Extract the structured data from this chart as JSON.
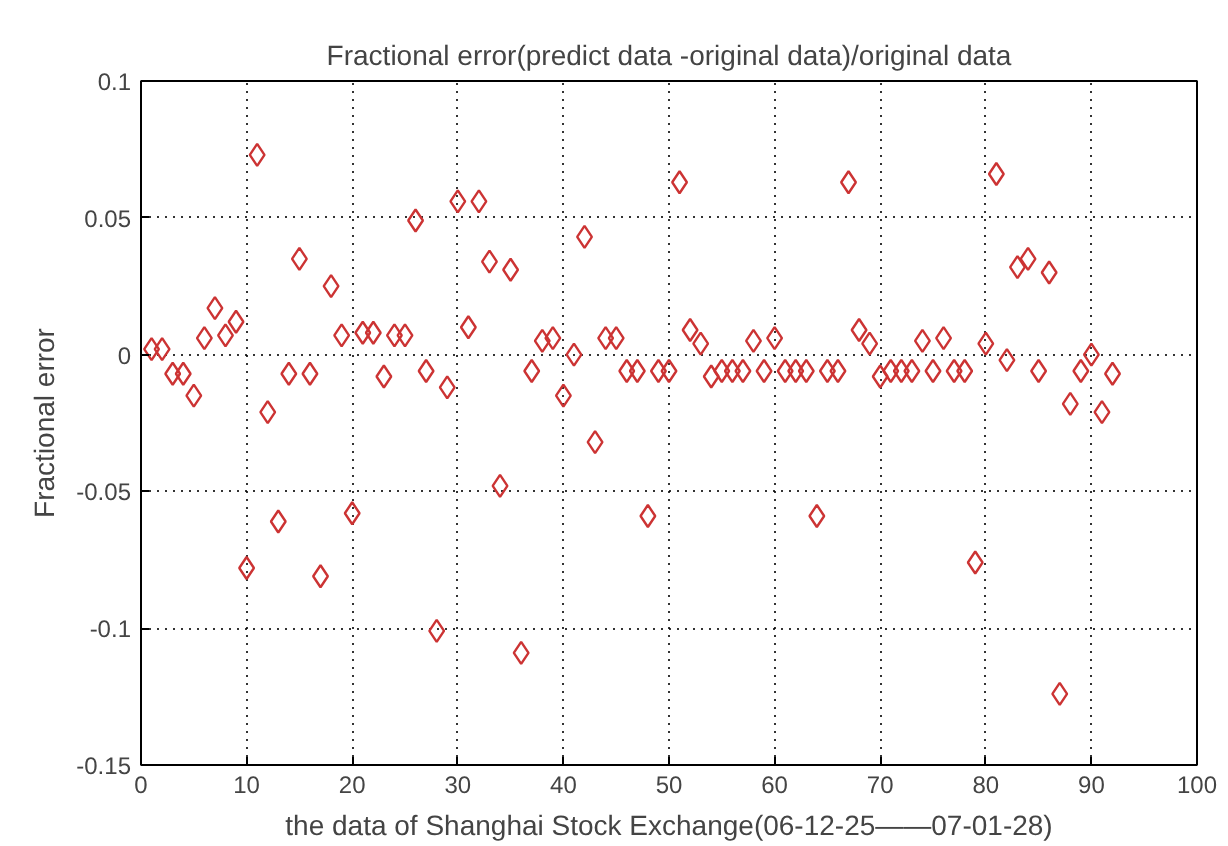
{
  "chart_data": {
    "type": "scatter",
    "title": "Fractional error(predict data -original data)/original data",
    "xlabel": "the data of Shanghai Stock Exchange(06-12-25——07-01-28)",
    "ylabel": "Fractional error",
    "x": [
      1,
      2,
      3,
      4,
      5,
      6,
      7,
      8,
      9,
      10,
      11,
      12,
      13,
      14,
      15,
      16,
      17,
      18,
      19,
      20,
      21,
      22,
      23,
      24,
      25,
      26,
      27,
      28,
      29,
      30,
      31,
      32,
      33,
      34,
      35,
      36,
      37,
      38,
      39,
      40,
      41,
      42,
      43,
      44,
      45,
      46,
      47,
      48,
      49,
      50,
      51,
      52,
      53,
      54,
      55,
      56,
      57,
      58,
      59,
      60,
      61,
      62,
      63,
      64,
      65,
      66,
      67,
      68,
      69,
      70,
      71,
      72,
      73,
      74,
      75,
      76,
      77,
      78,
      79,
      80,
      81,
      82,
      83,
      84,
      85,
      86,
      87,
      88,
      89,
      90,
      91,
      92
    ],
    "series": [
      {
        "color": "#cc3333",
        "values": [
          0.002,
          0.002,
          -0.007,
          -0.007,
          -0.015,
          0.006,
          0.017,
          0.007,
          0.012,
          -0.078,
          0.073,
          -0.021,
          -0.061,
          -0.007,
          0.035,
          -0.007,
          -0.081,
          0.025,
          0.007,
          -0.058,
          0.008,
          0.008,
          -0.008,
          0.007,
          0.007,
          0.049,
          -0.006,
          -0.101,
          -0.012,
          0.056,
          0.01,
          0.056,
          0.034,
          -0.048,
          0.031,
          -0.109,
          -0.006,
          0.005,
          0.006,
          -0.015,
          0,
          0.043,
          -0.032,
          0.006,
          0.006,
          -0.006,
          -0.006,
          -0.059,
          -0.006,
          -0.006,
          0.063,
          0.009,
          0.004,
          -0.008,
          -0.006,
          -0.006,
          -0.006,
          0.005,
          -0.006,
          0.006,
          -0.006,
          -0.006,
          -0.006,
          -0.059,
          -0.006,
          -0.006,
          0.063,
          0.009,
          0.004,
          -0.008,
          -0.006,
          -0.006,
          -0.006,
          0.005,
          -0.006,
          0.006,
          -0.006,
          -0.006,
          -0.076,
          0.004,
          0.066,
          -0.002,
          0.032,
          0.035,
          -0.006,
          0.03,
          -0.124,
          -0.018,
          -0.006,
          0,
          -0.021,
          -0.007
        ]
      }
    ],
    "xlim": [
      0,
      100
    ],
    "xticks": [
      0,
      10,
      20,
      30,
      40,
      50,
      60,
      70,
      80,
      90,
      100
    ],
    "ylim": [
      -0.15,
      0.1
    ],
    "yticks": [
      -0.15,
      -0.1,
      -0.05,
      0,
      0.05,
      0.1
    ],
    "grid": true,
    "marker": "diamond"
  }
}
